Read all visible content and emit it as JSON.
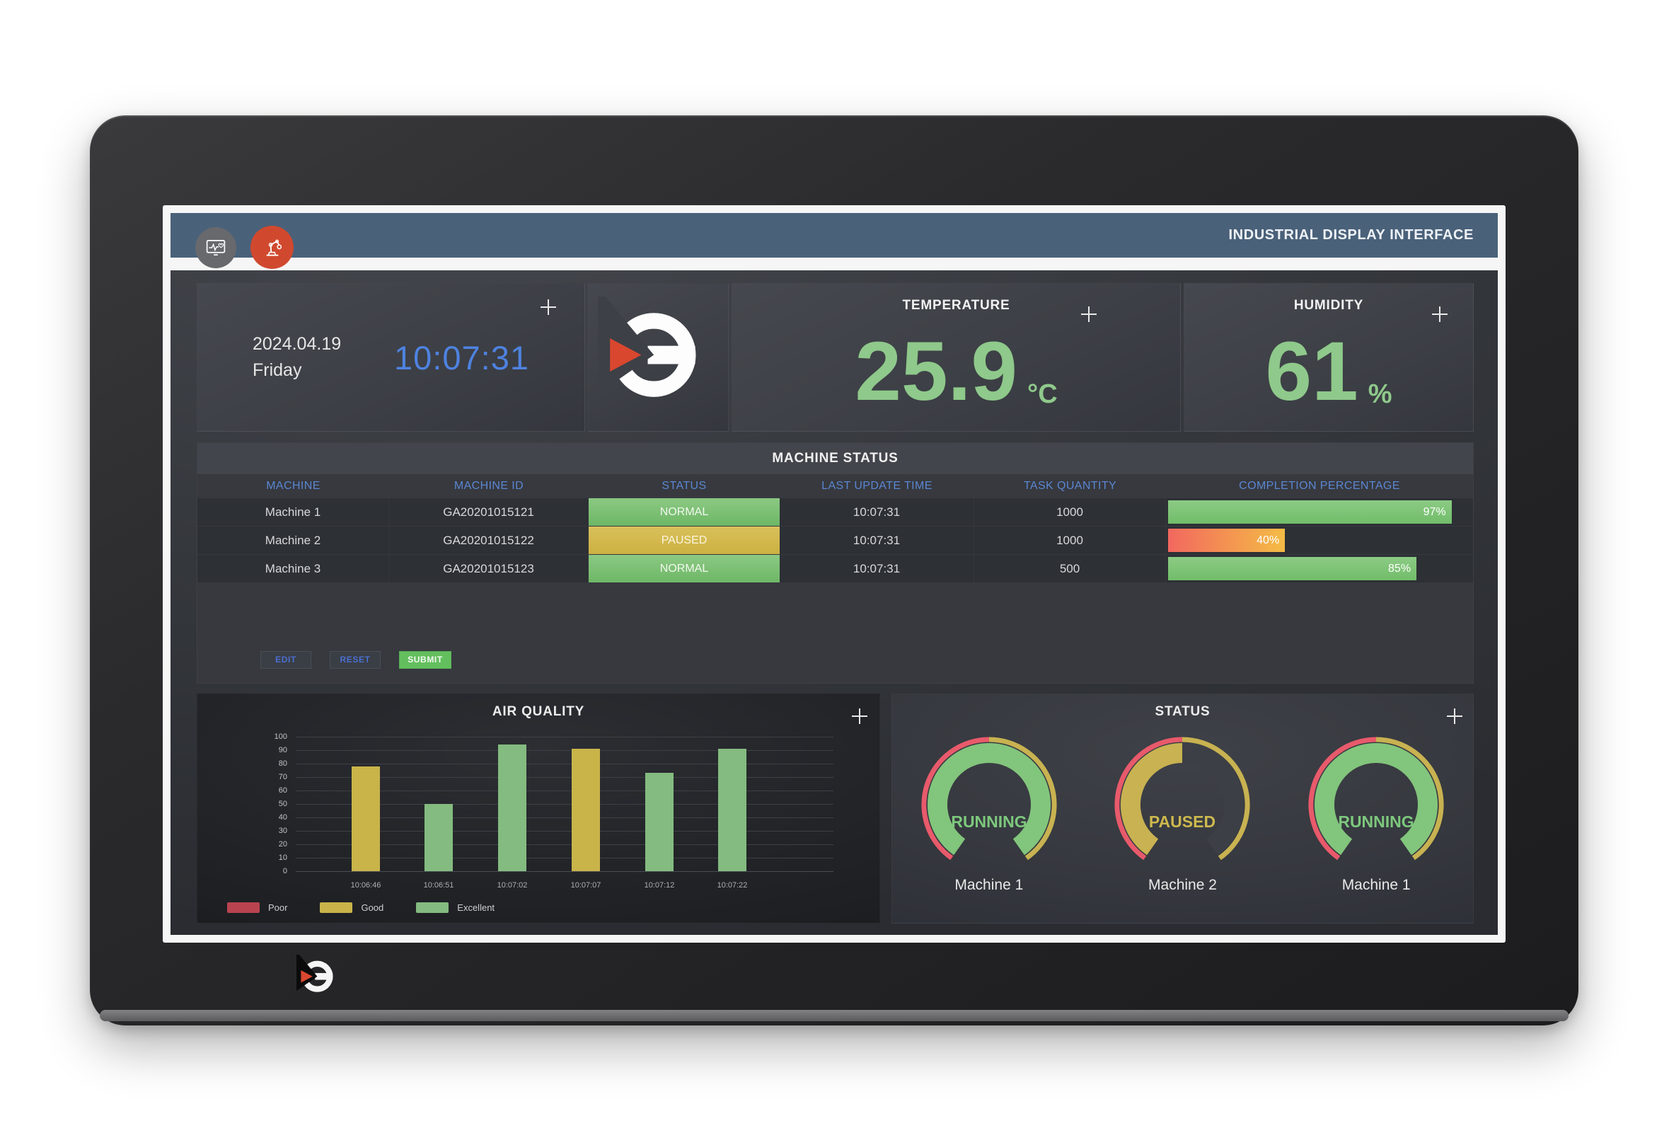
{
  "header": {
    "title": "INDUSTRIAL DISPLAY INTERFACE",
    "icons": [
      {
        "name": "monitor-pulse-icon"
      },
      {
        "name": "robot-arm-icon"
      }
    ]
  },
  "clock": {
    "date": "2024.04.19",
    "day": "Friday",
    "time": "10:07:31"
  },
  "temperature": {
    "title": "TEMPERATURE",
    "value": "25.9",
    "unit": "°C"
  },
  "humidity": {
    "title": "HUMIDITY",
    "value": "61",
    "unit": "%"
  },
  "machine_status": {
    "title": "MACHINE STATUS",
    "columns": [
      "MACHINE",
      "MACHINE ID",
      "STATUS",
      "LAST UPDATE TIME",
      "TASK QUANTITY",
      "COMPLETION PERCENTAGE"
    ],
    "rows": [
      {
        "machine": "Machine 1",
        "machine_id": "GA20201015121",
        "status": "NORMAL",
        "status_color": "green",
        "last_update": "10:07:31",
        "task_quantity": "1000",
        "completion_pct": 97
      },
      {
        "machine": "Machine 2",
        "machine_id": "GA20201015122",
        "status": "PAUSED",
        "status_color": "yellow",
        "last_update": "10:07:31",
        "task_quantity": "1000",
        "completion_pct": 40
      },
      {
        "machine": "Machine 3",
        "machine_id": "GA20201015123",
        "status": "NORMAL",
        "status_color": "green",
        "last_update": "10:07:31",
        "task_quantity": "500",
        "completion_pct": 85
      }
    ],
    "buttons": [
      {
        "label": "EDIT"
      },
      {
        "label": "RESET"
      },
      {
        "label": "SUBMIT"
      }
    ]
  },
  "chart_data": {
    "type": "bar",
    "title": "AIR QUALITY",
    "x": [
      "10:06:46",
      "10:06:51",
      "10:07:02",
      "10:07:07",
      "10:07:12",
      "10:07:22"
    ],
    "values": [
      78,
      50,
      94,
      91,
      73,
      91
    ],
    "levels": [
      "Good",
      "Excellent",
      "Excellent",
      "Good",
      "Excellent",
      "Excellent"
    ],
    "ylim": [
      0,
      100
    ],
    "ytick_step": 10,
    "grid": true,
    "legend_position": "bottom-left",
    "legend": [
      {
        "label": "Poor",
        "color": "#b9444f"
      },
      {
        "label": "Good",
        "color": "#c9b44a"
      },
      {
        "label": "Excellent",
        "color": "#84bb80"
      }
    ]
  },
  "status_card": {
    "title": "STATUS",
    "gauges": [
      {
        "label": "RUNNING",
        "machine": "Machine 1",
        "state": "running"
      },
      {
        "label": "PAUSED",
        "machine": "Machine 2",
        "state": "paused"
      },
      {
        "label": "RUNNING",
        "machine": "Machine 1",
        "state": "running"
      }
    ]
  },
  "colors": {
    "header_bar": "#4a617a",
    "accent_blue": "#4e82e0",
    "table_header_text": "#5b86d2",
    "value_green": "#8fc98b",
    "status_green": "#79c06f",
    "status_yellow": "#d2b84e",
    "bar_green": "#7cc578",
    "bar_gradient_start": "#f2685f",
    "bar_gradient_end": "#f5bc45",
    "gauge_red": "#e85a6b",
    "gauge_yellow": "#c8b251",
    "gauge_green": "#82c57c",
    "gauge_track": "#3c3f45",
    "running_text": "#7dc87d",
    "paused_text": "#cdb94e",
    "submit_green": "#63bf5e",
    "logo_red": "#d9472f"
  }
}
